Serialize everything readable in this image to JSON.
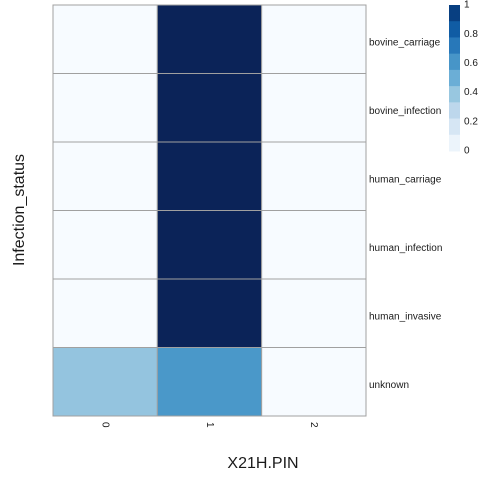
{
  "chart_data": {
    "type": "heatmap",
    "xlabel": "X21H.PIN",
    "ylabel": "Infection_status",
    "x_categories": [
      "0",
      "1",
      "2"
    ],
    "y_categories": [
      "bovine_carriage",
      "bovine_infection",
      "human_carriage",
      "human_infection",
      "human_invasive",
      "unknown"
    ],
    "values": [
      [
        0,
        1,
        0
      ],
      [
        0,
        1,
        0
      ],
      [
        0,
        1,
        0
      ],
      [
        0,
        1,
        0
      ],
      [
        0,
        1,
        0
      ],
      [
        0.4,
        0.6,
        0
      ]
    ],
    "color_range": [
      0,
      1
    ],
    "legend": {
      "position": "top-right",
      "tick_labels": [
        "1",
        "0.8",
        "0.6",
        "0.4",
        "0.2",
        "0"
      ],
      "tick_values": [
        1,
        0.8,
        0.6,
        0.4,
        0.2,
        0
      ],
      "steps": 9
    },
    "colors": {
      "low": "#f7fbff",
      "high": "#08306b",
      "grid": "#a0a0a0"
    }
  }
}
